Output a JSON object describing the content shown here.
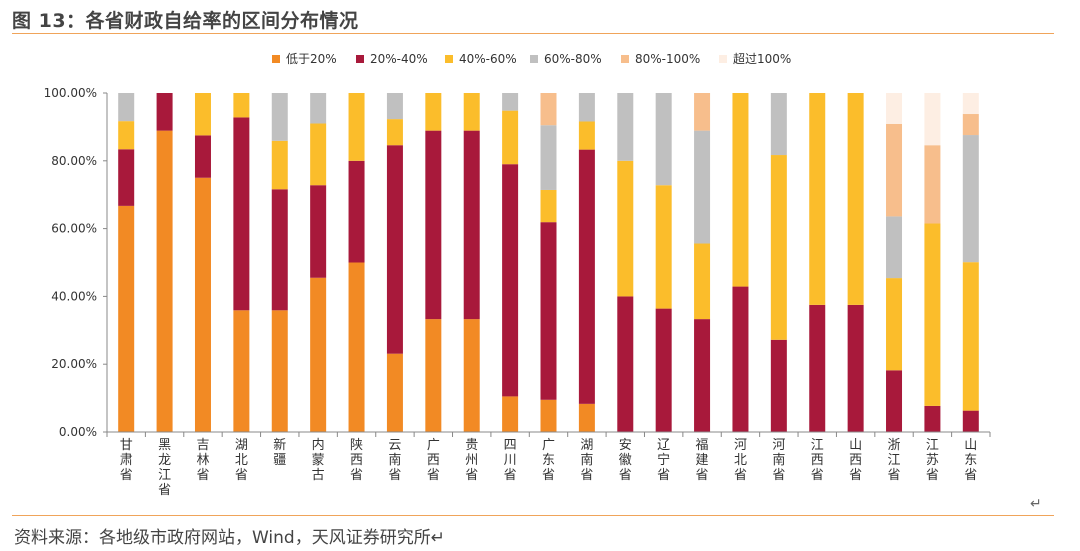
{
  "header": {
    "title": "图 13：各省财政自给率的区间分布情况",
    "return_mark": "↵"
  },
  "footer": {
    "source": "资料来源：各地级市政府网站，Wind，天风证券研究所↵",
    "corner_mark": "↵"
  },
  "colors": {
    "accent_rule": "#f0a45a"
  },
  "chart_data": {
    "type": "bar",
    "stacked": true,
    "categories": [
      "甘肃省",
      "黑龙江省",
      "吉林省",
      "湖北省",
      "新疆",
      "内蒙古",
      "陕西省",
      "云南省",
      "广西省",
      "贵州省",
      "四川省",
      "广东省",
      "湖南省",
      "安徽省",
      "辽宁省",
      "福建省",
      "河北省",
      "河南省",
      "江西省",
      "山西省",
      "浙江省",
      "江苏省",
      "山东省"
    ],
    "yticks": [
      "0.00%",
      "20.00%",
      "40.00%",
      "60.00%",
      "80.00%",
      "100.00%"
    ],
    "ylim": [
      0,
      100
    ],
    "legend_position": "top",
    "series": [
      {
        "name": "低于20%",
        "color": "#f28a24",
        "values": [
          66.7,
          88.9,
          75.0,
          35.9,
          35.9,
          45.5,
          50.0,
          23.1,
          33.3,
          33.3,
          10.5,
          9.5,
          8.3,
          0,
          0,
          0,
          0,
          0,
          0,
          0,
          0,
          0,
          0
        ]
      },
      {
        "name": "20%-40%",
        "color": "#a8193b",
        "values": [
          16.7,
          11.1,
          12.5,
          56.9,
          35.7,
          27.3,
          30.0,
          61.5,
          55.6,
          55.6,
          68.5,
          52.4,
          75.0,
          40.0,
          36.4,
          33.3,
          42.9,
          27.2,
          37.5,
          37.5,
          18.2,
          7.7,
          6.3
        ]
      },
      {
        "name": "40%-60%",
        "color": "#fbbd2b",
        "values": [
          8.3,
          0,
          12.5,
          7.2,
          14.3,
          18.2,
          20.0,
          7.7,
          11.1,
          11.1,
          15.8,
          9.5,
          8.3,
          40.0,
          36.4,
          22.3,
          57.1,
          54.5,
          62.5,
          62.5,
          27.2,
          53.8,
          43.8
        ]
      },
      {
        "name": "60%-80%",
        "color": "#c0c0c0",
        "values": [
          8.3,
          0,
          0,
          0,
          14.1,
          9.0,
          0,
          7.7,
          0,
          0,
          5.2,
          19.1,
          8.4,
          20.0,
          27.2,
          33.3,
          0,
          18.3,
          0,
          0,
          18.2,
          0,
          37.5
        ]
      },
      {
        "name": "80%-100%",
        "color": "#f7be8c",
        "values": [
          0,
          0,
          0,
          0,
          0,
          0,
          0,
          0,
          0,
          0,
          0,
          9.5,
          0,
          0,
          0,
          11.1,
          0,
          0,
          0,
          0,
          27.3,
          23.1,
          6.2
        ]
      },
      {
        "name": "超过100%",
        "color": "#fdeee3",
        "values": [
          0,
          0,
          0,
          0,
          0,
          0,
          0,
          0,
          0,
          0,
          0,
          0,
          0,
          0,
          0,
          0,
          0,
          0,
          0,
          0,
          9.1,
          15.4,
          6.2
        ]
      }
    ]
  }
}
